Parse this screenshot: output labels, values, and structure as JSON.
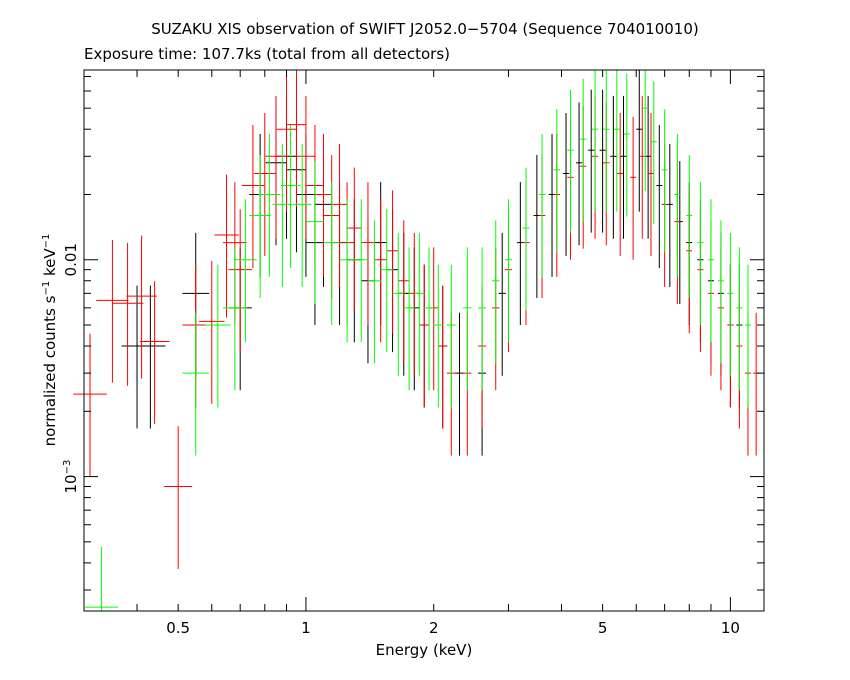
{
  "chart_data": {
    "type": "scatter",
    "title": "SUZAKU XIS observation of SWIFT J2052.0−5704 (Sequence 704010010)",
    "subtitle": "Exposure time: 107.7ks (total from all detectors)",
    "xlabel": "Energy (keV)",
    "ylabel_parts": {
      "a": "normalized counts s",
      "a_sup": "−1",
      "b": " keV",
      "b_sup": "−1"
    },
    "xscale": "log",
    "yscale": "log",
    "xlim": [
      0.3,
      12
    ],
    "ylim": [
      0.00024,
      0.075
    ],
    "xticks": [
      {
        "value": 0.5,
        "label": "0.5"
      },
      {
        "value": 1,
        "label": "1"
      },
      {
        "value": 2,
        "label": "2"
      },
      {
        "value": 5,
        "label": "5"
      },
      {
        "value": 10,
        "label": "10"
      }
    ],
    "yticks": [
      {
        "value": 0.01,
        "label": "0.01"
      },
      {
        "value": 0.001,
        "label": "10",
        "sup": "−3"
      }
    ],
    "series": [
      {
        "color": "#000000",
        "points": [
          [
            0.4,
            0.004
          ],
          [
            0.43,
            0.004
          ],
          [
            0.55,
            0.007
          ],
          [
            0.7,
            0.006
          ],
          [
            0.78,
            0.02
          ],
          [
            0.85,
            0.028
          ],
          [
            0.9,
            0.03
          ],
          [
            0.95,
            0.026
          ],
          [
            1.0,
            0.02
          ],
          [
            1.05,
            0.012
          ],
          [
            1.1,
            0.018
          ],
          [
            1.2,
            0.012
          ],
          [
            1.3,
            0.01
          ],
          [
            1.4,
            0.008
          ],
          [
            1.5,
            0.012
          ],
          [
            1.6,
            0.009
          ],
          [
            1.7,
            0.007
          ],
          [
            1.8,
            0.006
          ],
          [
            1.9,
            0.005
          ],
          [
            2.1,
            0.004
          ],
          [
            2.3,
            0.003
          ],
          [
            2.6,
            0.003
          ],
          [
            2.9,
            0.007
          ],
          [
            3.2,
            0.012
          ],
          [
            3.5,
            0.016
          ],
          [
            3.8,
            0.02
          ],
          [
            4.1,
            0.025
          ],
          [
            4.4,
            0.028
          ],
          [
            4.7,
            0.032
          ],
          [
            5.0,
            0.032
          ],
          [
            5.3,
            0.03
          ],
          [
            5.6,
            0.03
          ],
          [
            6.1,
            0.04
          ],
          [
            6.4,
            0.03
          ],
          [
            6.8,
            0.022
          ],
          [
            7.2,
            0.018
          ],
          [
            7.6,
            0.015
          ],
          [
            8.0,
            0.012
          ],
          [
            8.5,
            0.01
          ],
          [
            9.0,
            0.008
          ],
          [
            9.5,
            0.007
          ],
          [
            10.0,
            0.005
          ],
          [
            10.5,
            0.005
          ]
        ]
      },
      {
        "color": "#ff0000",
        "points": [
          [
            0.31,
            0.0024
          ],
          [
            0.35,
            0.0065
          ],
          [
            0.38,
            0.0063
          ],
          [
            0.41,
            0.0068
          ],
          [
            0.44,
            0.0042
          ],
          [
            0.5,
            0.0009
          ],
          [
            0.55,
            0.005
          ],
          [
            0.6,
            0.0052
          ],
          [
            0.65,
            0.013
          ],
          [
            0.68,
            0.012
          ],
          [
            0.7,
            0.009
          ],
          [
            0.75,
            0.022
          ],
          [
            0.8,
            0.025
          ],
          [
            0.85,
            0.03
          ],
          [
            0.9,
            0.04
          ],
          [
            0.95,
            0.042
          ],
          [
            1.0,
            0.03
          ],
          [
            1.05,
            0.022
          ],
          [
            1.1,
            0.02
          ],
          [
            1.15,
            0.016
          ],
          [
            1.2,
            0.018
          ],
          [
            1.25,
            0.012
          ],
          [
            1.3,
            0.014
          ],
          [
            1.4,
            0.012
          ],
          [
            1.5,
            0.01
          ],
          [
            1.6,
            0.011
          ],
          [
            1.7,
            0.008
          ],
          [
            1.8,
            0.007
          ],
          [
            1.9,
            0.005
          ],
          [
            2.0,
            0.006
          ],
          [
            2.1,
            0.004
          ],
          [
            2.2,
            0.003
          ],
          [
            2.4,
            0.003
          ],
          [
            2.6,
            0.004
          ],
          [
            2.8,
            0.006
          ],
          [
            3.0,
            0.009
          ],
          [
            3.3,
            0.012
          ],
          [
            3.6,
            0.016
          ],
          [
            3.9,
            0.02
          ],
          [
            4.2,
            0.024
          ],
          [
            4.5,
            0.027
          ],
          [
            4.8,
            0.03
          ],
          [
            5.1,
            0.028
          ],
          [
            5.5,
            0.025
          ],
          [
            5.9,
            0.024
          ],
          [
            6.2,
            0.03
          ],
          [
            6.5,
            0.025
          ],
          [
            7.0,
            0.018
          ],
          [
            7.5,
            0.015
          ],
          [
            8.0,
            0.011
          ],
          [
            8.5,
            0.009
          ],
          [
            9.0,
            0.007
          ],
          [
            9.5,
            0.006
          ],
          [
            10.0,
            0.005
          ],
          [
            10.5,
            0.004
          ],
          [
            11.0,
            0.003
          ],
          [
            11.5,
            0.003
          ]
        ]
      },
      {
        "color": "#00ff00",
        "points": [
          [
            0.33,
            0.00025
          ],
          [
            0.55,
            0.003
          ],
          [
            0.62,
            0.005
          ],
          [
            0.68,
            0.006
          ],
          [
            0.72,
            0.01
          ],
          [
            0.78,
            0.016
          ],
          [
            0.82,
            0.02
          ],
          [
            0.88,
            0.018
          ],
          [
            0.92,
            0.022
          ],
          [
            0.98,
            0.018
          ],
          [
            1.05,
            0.015
          ],
          [
            1.15,
            0.012
          ],
          [
            1.25,
            0.01
          ],
          [
            1.35,
            0.01
          ],
          [
            1.45,
            0.008
          ],
          [
            1.55,
            0.009
          ],
          [
            1.65,
            0.007
          ],
          [
            1.75,
            0.006
          ],
          [
            1.85,
            0.007
          ],
          [
            1.95,
            0.006
          ],
          [
            2.05,
            0.005
          ],
          [
            2.2,
            0.005
          ],
          [
            2.4,
            0.006
          ],
          [
            2.6,
            0.006
          ],
          [
            2.8,
            0.008
          ],
          [
            3.0,
            0.01
          ],
          [
            3.3,
            0.014
          ],
          [
            3.6,
            0.02
          ],
          [
            3.9,
            0.026
          ],
          [
            4.2,
            0.032
          ],
          [
            4.5,
            0.036
          ],
          [
            4.8,
            0.04
          ],
          [
            5.1,
            0.04
          ],
          [
            5.4,
            0.04
          ],
          [
            5.7,
            0.038
          ],
          [
            6.3,
            0.05
          ],
          [
            6.6,
            0.035
          ],
          [
            7.0,
            0.026
          ],
          [
            7.5,
            0.02
          ],
          [
            8.0,
            0.016
          ],
          [
            8.5,
            0.012
          ],
          [
            9.0,
            0.01
          ],
          [
            9.5,
            0.008
          ],
          [
            10.0,
            0.007
          ],
          [
            10.5,
            0.006
          ],
          [
            11.0,
            0.005
          ]
        ]
      }
    ]
  }
}
